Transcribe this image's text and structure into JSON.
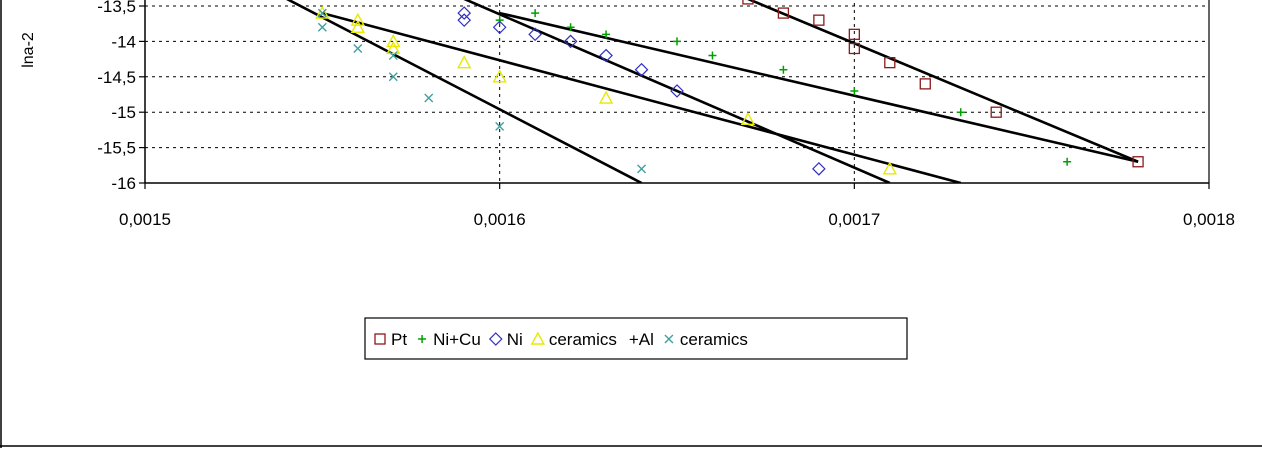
{
  "chart_data": {
    "type": "scatter",
    "title": "",
    "xlabel": "",
    "ylabel": "lna-2",
    "xlim": [
      0.0015,
      0.0018
    ],
    "ylim": [
      -16,
      -13.5
    ],
    "x_ticks": [
      0.0015,
      0.0016,
      0.0017,
      0.0018
    ],
    "x_tick_labels": [
      "0,0015",
      "0,0016",
      "0,0017",
      "0,0018"
    ],
    "y_ticks": [
      -13.5,
      -14,
      -14.5,
      -15,
      -15.5,
      -16
    ],
    "y_tick_labels": [
      "-13,5",
      "-14",
      "-14,5",
      "-15",
      "-15,5",
      "-16"
    ],
    "grid": "dotted at 0,0016 and 0,0017 (x) and every 0,5 (y)",
    "legend_position": "bottom",
    "colors": {
      "Pt": "#8b1a1a",
      "Ni+Cu": "#00a000",
      "Ni": "#3030c0",
      "ceramics": "#e8e800",
      "ceramics_al": "#40a0a0",
      "fit_line": "#000000",
      "grid": "#000000"
    },
    "series": [
      {
        "name": "Pt",
        "marker": "square",
        "color": "#8b1a1a",
        "points": [
          [
            0.00167,
            -13.4
          ],
          [
            0.00168,
            -13.6
          ],
          [
            0.00169,
            -13.7
          ],
          [
            0.0017,
            -13.9
          ],
          [
            0.0017,
            -14.1
          ],
          [
            0.00171,
            -14.3
          ],
          [
            0.00172,
            -14.6
          ],
          [
            0.00174,
            -15.0
          ],
          [
            0.00178,
            -15.7
          ]
        ],
        "fit": [
          [
            0.00167,
            -13.4
          ],
          [
            0.00178,
            -15.7
          ]
        ]
      },
      {
        "name": "Ni+Cu",
        "marker": "plus",
        "color": "#00a000",
        "points": [
          [
            0.0016,
            -13.7
          ],
          [
            0.00161,
            -13.6
          ],
          [
            0.00162,
            -13.8
          ],
          [
            0.00163,
            -13.9
          ],
          [
            0.00165,
            -14.0
          ],
          [
            0.00166,
            -14.2
          ],
          [
            0.00168,
            -14.4
          ],
          [
            0.0017,
            -14.7
          ],
          [
            0.00173,
            -15.0
          ],
          [
            0.00176,
            -15.7
          ]
        ],
        "fit": [
          [
            0.0016,
            -13.6
          ],
          [
            0.00178,
            -15.7
          ]
        ]
      },
      {
        "name": "Ni",
        "marker": "diamond",
        "color": "#3030c0",
        "points": [
          [
            0.00159,
            -13.6
          ],
          [
            0.00159,
            -13.7
          ],
          [
            0.0016,
            -13.8
          ],
          [
            0.00161,
            -13.9
          ],
          [
            0.00162,
            -14.0
          ],
          [
            0.00163,
            -14.2
          ],
          [
            0.00164,
            -14.4
          ],
          [
            0.00165,
            -14.7
          ],
          [
            0.00169,
            -15.8
          ]
        ],
        "fit": [
          [
            0.00159,
            -13.4
          ],
          [
            0.00171,
            -16.0
          ]
        ]
      },
      {
        "name": "ceramics",
        "marker": "triangle",
        "color": "#e8e800",
        "points": [
          [
            0.00155,
            -13.6
          ],
          [
            0.00156,
            -13.7
          ],
          [
            0.00156,
            -13.8
          ],
          [
            0.00157,
            -14.0
          ],
          [
            0.00157,
            -14.1
          ],
          [
            0.00159,
            -14.3
          ],
          [
            0.0016,
            -14.5
          ],
          [
            0.00163,
            -14.8
          ],
          [
            0.00167,
            -15.1
          ],
          [
            0.00171,
            -15.8
          ]
        ],
        "fit": [
          [
            0.00155,
            -13.6
          ],
          [
            0.00173,
            -16.0
          ]
        ]
      },
      {
        "name": "+Al",
        "marker": "x",
        "color": "#40a0a0",
        "legend_label": "ceramics",
        "points": [
          [
            0.00155,
            -13.6
          ],
          [
            0.00155,
            -13.8
          ],
          [
            0.00156,
            -14.1
          ],
          [
            0.00157,
            -14.2
          ],
          [
            0.00157,
            -14.5
          ],
          [
            0.00158,
            -14.8
          ],
          [
            0.0016,
            -15.2
          ],
          [
            0.00164,
            -15.8
          ]
        ],
        "fit": [
          [
            0.00154,
            -13.4
          ],
          [
            0.00164,
            -16.0
          ]
        ]
      }
    ],
    "legend": [
      {
        "marker": "square",
        "color": "#8b1a1a",
        "label": "Pt"
      },
      {
        "marker": "plus",
        "color": "#00a000",
        "label": "Ni+Cu"
      },
      {
        "marker": "diamond",
        "color": "#3030c0",
        "label": "Ni"
      },
      {
        "marker": "triangle",
        "color": "#e8e800",
        "label": "ceramics"
      },
      {
        "marker": "none",
        "color": "#000000",
        "label": "+Al"
      },
      {
        "marker": "x",
        "color": "#40a0a0",
        "label": "ceramics"
      }
    ]
  }
}
